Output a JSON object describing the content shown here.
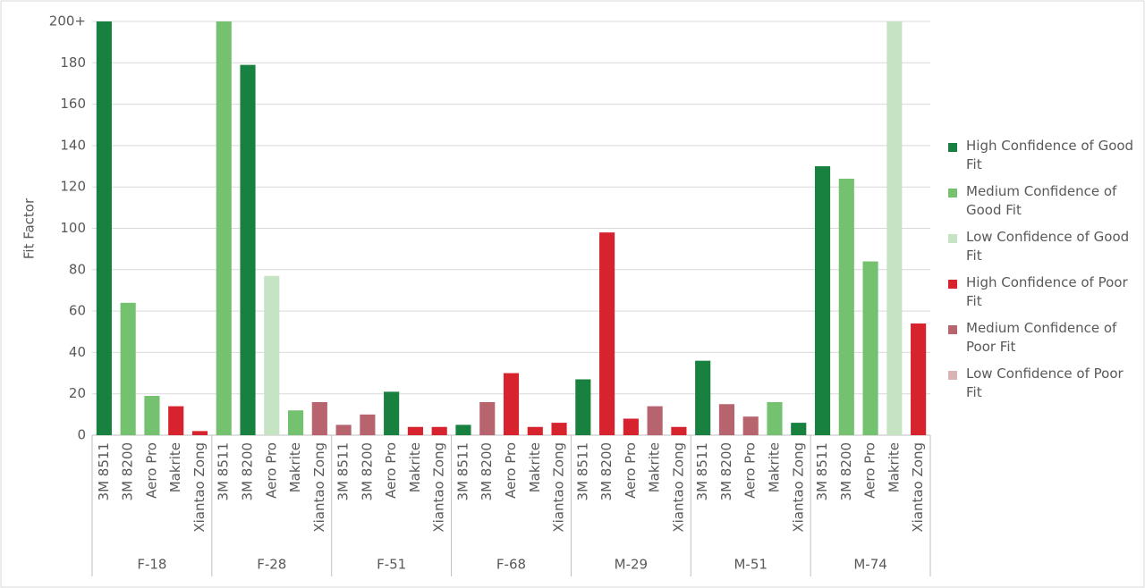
{
  "chart_data": {
    "type": "bar",
    "y_label": "Fit Factor",
    "groups": [
      {
        "name": "F-18",
        "categories": [
          "3M 8511",
          "3M 8200",
          "Aero Pro",
          "Makrite",
          "Xiantao Zong"
        ]
      },
      {
        "name": "F-28",
        "categories": [
          "3M 8511",
          "3M 8200",
          "Aero Pro",
          "Makrite",
          "Xiantao Zong"
        ]
      },
      {
        "name": "F-51",
        "categories": [
          "3M 8511",
          "3M 8200",
          "Aero Pro",
          "Makrite",
          "Xiantao Zong"
        ]
      },
      {
        "name": "F-68",
        "categories": [
          "3M 8511",
          "3M 8200",
          "Aero Pro",
          "Makrite",
          "Xiantao Zong"
        ]
      },
      {
        "name": "M-29",
        "categories": [
          "3M 8511",
          "3M 8200",
          "Aero Pro",
          "Makrite",
          "Xiantao Zong"
        ]
      },
      {
        "name": "M-51",
        "categories": [
          "3M 8511",
          "3M 8200",
          "Aero Pro",
          "Makrite",
          "Xiantao Zong"
        ]
      },
      {
        "name": "M-74",
        "categories": [
          "3M 8511",
          "3M 8200",
          "Aero Pro",
          "Makrite",
          "Xiantao Zong"
        ]
      }
    ],
    "series": [
      {
        "name": "High Confidence of Good Fit",
        "color": "#18813f",
        "values": [
          200,
          null,
          null,
          null,
          null,
          null,
          179,
          null,
          null,
          null,
          null,
          null,
          21,
          null,
          null,
          5,
          null,
          null,
          null,
          null,
          27,
          null,
          null,
          null,
          null,
          36,
          null,
          null,
          null,
          6,
          130,
          null,
          null,
          null,
          null
        ]
      },
      {
        "name": "Medium Confidence of Good Fit",
        "color": "#74c26f",
        "values": [
          null,
          64,
          19,
          null,
          null,
          200,
          null,
          null,
          12,
          null,
          null,
          null,
          null,
          null,
          null,
          null,
          null,
          null,
          null,
          null,
          null,
          null,
          null,
          null,
          null,
          null,
          null,
          null,
          16,
          null,
          null,
          124,
          84,
          null,
          null
        ]
      },
      {
        "name": "Low Confidence of Good Fit",
        "color": "#c6e4c4",
        "values": [
          null,
          null,
          null,
          null,
          null,
          null,
          null,
          77,
          null,
          null,
          null,
          null,
          null,
          null,
          null,
          null,
          null,
          null,
          null,
          null,
          null,
          null,
          null,
          null,
          null,
          null,
          null,
          null,
          null,
          null,
          null,
          null,
          null,
          200,
          null
        ]
      },
      {
        "name": "High Confidence of Poor Fit",
        "color": "#d7232e",
        "values": [
          null,
          null,
          null,
          14,
          2,
          null,
          null,
          null,
          null,
          null,
          null,
          null,
          null,
          4,
          4,
          null,
          null,
          30,
          4,
          6,
          null,
          98,
          8,
          null,
          4,
          null,
          null,
          null,
          null,
          null,
          null,
          null,
          null,
          null,
          54
        ]
      },
      {
        "name": "Medium Confidence of Poor Fit",
        "color": "#b8646f",
        "values": [
          null,
          null,
          null,
          null,
          null,
          null,
          null,
          null,
          null,
          16,
          5,
          10,
          null,
          null,
          null,
          null,
          16,
          null,
          null,
          null,
          null,
          null,
          null,
          14,
          null,
          null,
          15,
          9,
          null,
          null,
          null,
          null,
          null,
          null,
          null
        ]
      },
      {
        "name": "Low Confidence of Poor Fit",
        "color": "#d9b4b4",
        "values": [
          null,
          null,
          null,
          null,
          null,
          null,
          null,
          null,
          null,
          null,
          null,
          null,
          null,
          null,
          null,
          null,
          null,
          null,
          null,
          null,
          null,
          null,
          null,
          null,
          null,
          null,
          null,
          null,
          null,
          null,
          null,
          null,
          null,
          null,
          null
        ]
      }
    ],
    "ylim": [
      0,
      200
    ],
    "yticks": [
      0,
      20,
      40,
      60,
      80,
      100,
      120,
      140,
      160,
      180,
      {
        "value": 200,
        "label": "200+"
      }
    ],
    "grid": true
  }
}
